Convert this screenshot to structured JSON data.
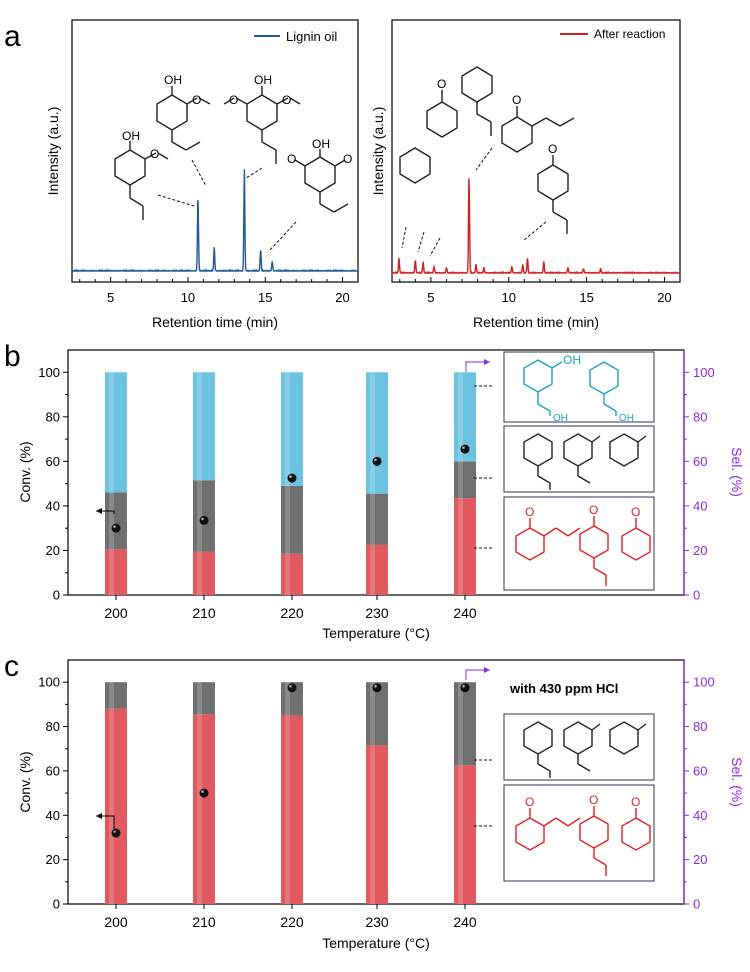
{
  "panel_labels": [
    "a",
    "b",
    "c"
  ],
  "chart_data": [
    {
      "type": "line",
      "panel": "a-left",
      "series": [
        {
          "name": "Lignin oil",
          "color": "#1f5c99"
        }
      ],
      "xlabel": "Retention time (min)",
      "ylabel": "Intensity (a.u.)",
      "xlim": [
        2.5,
        21
      ],
      "xticks": [
        5,
        10,
        15,
        20
      ],
      "peaks": [
        {
          "t": 10.65,
          "h": 0.62
        },
        {
          "t": 11.7,
          "h": 0.2
        },
        {
          "t": 13.65,
          "h": 0.85
        },
        {
          "t": 14.7,
          "h": 0.18
        },
        {
          "t": 15.45,
          "h": 0.08
        }
      ],
      "atom_labels": {
        "oh": "OH",
        "o": "O"
      }
    },
    {
      "type": "line",
      "panel": "a-right",
      "series": [
        {
          "name": "After reaction",
          "color": "#d02020"
        }
      ],
      "xlabel": "Retention time (min)",
      "ylabel": "Intensity (a.u.)",
      "xlim": [
        2.5,
        21
      ],
      "xticks": [
        5,
        10,
        15,
        20
      ],
      "peaks": [
        {
          "t": 2.95,
          "h": 0.14
        },
        {
          "t": 4.0,
          "h": 0.12
        },
        {
          "t": 4.5,
          "h": 0.1
        },
        {
          "t": 5.2,
          "h": 0.06
        },
        {
          "t": 6.0,
          "h": 0.05
        },
        {
          "t": 7.45,
          "h": 0.92
        },
        {
          "t": 7.9,
          "h": 0.08
        },
        {
          "t": 8.4,
          "h": 0.05
        },
        {
          "t": 10.2,
          "h": 0.06
        },
        {
          "t": 10.9,
          "h": 0.08
        },
        {
          "t": 11.2,
          "h": 0.14
        },
        {
          "t": 12.25,
          "h": 0.11
        },
        {
          "t": 13.8,
          "h": 0.05
        },
        {
          "t": 14.8,
          "h": 0.04
        },
        {
          "t": 15.9,
          "h": 0.04
        }
      ],
      "atom_labels": {
        "o": "O"
      }
    },
    {
      "type": "bar",
      "panel": "b",
      "categories": [
        "200",
        "210",
        "220",
        "230",
        "240"
      ],
      "xlabel": "Temperature (°C)",
      "ylabel": "Conv. (%)",
      "y2label": "Sel. (%)",
      "ylim": [
        0,
        110
      ],
      "yticks": [
        0,
        20,
        40,
        60,
        80,
        100
      ],
      "series": [
        {
          "name": "Ketones",
          "color": "#e05a60",
          "values": [
            20.5,
            19.5,
            18.5,
            22.5,
            43.5
          ]
        },
        {
          "name": "Alkanes",
          "color": "#6f6f6f",
          "values": [
            25.5,
            32,
            30.5,
            23,
            16.5
          ]
        },
        {
          "name": "Alcohols",
          "color": "#6cc3e0",
          "values": [
            54,
            48.5,
            51,
            54.5,
            40
          ]
        }
      ],
      "conversion": [
        30,
        33.5,
        52.5,
        60,
        65.5
      ],
      "atom_labels": {
        "oh": "OH",
        "o": "O"
      }
    },
    {
      "type": "bar",
      "panel": "c",
      "categories": [
        "200",
        "210",
        "220",
        "230",
        "240"
      ],
      "xlabel": "Temperature (°C)",
      "ylabel": "Conv. (%)",
      "y2label": "Sel. (%)",
      "ylim": [
        0,
        110
      ],
      "yticks": [
        0,
        20,
        40,
        60,
        80,
        100
      ],
      "annotation": "with 430 ppm HCl",
      "series": [
        {
          "name": "Ketones",
          "color": "#e05a60",
          "values": [
            88,
            85.5,
            85,
            71.5,
            62.5
          ]
        },
        {
          "name": "Alkanes",
          "color": "#6f6f6f",
          "values": [
            12,
            14.5,
            15,
            28.5,
            37.5
          ]
        }
      ],
      "conversion": [
        32,
        50,
        97.5,
        97.5,
        97.5
      ],
      "atom_labels": {
        "o": "O"
      }
    }
  ]
}
